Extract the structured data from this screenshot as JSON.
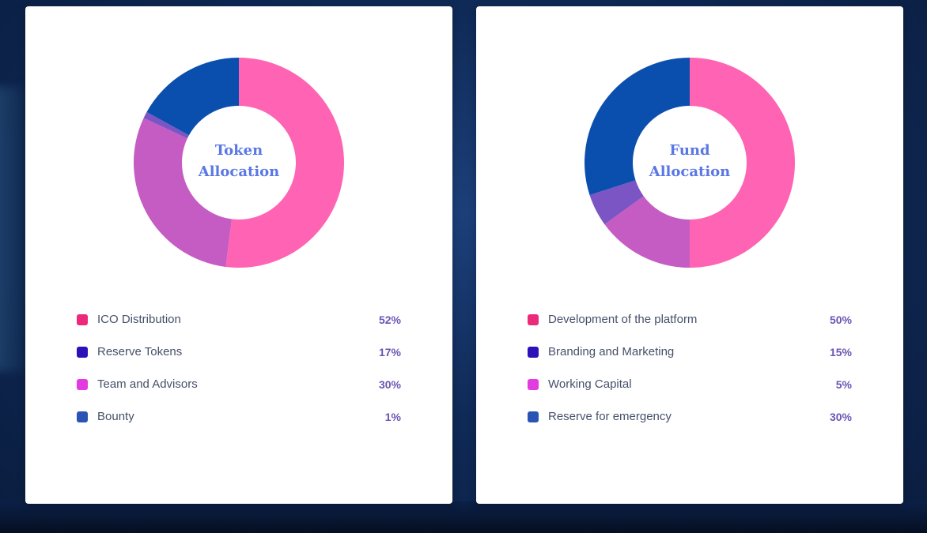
{
  "chart_data": [
    {
      "type": "pie",
      "title_lines": [
        "Token",
        "Allocation"
      ],
      "slices": [
        {
          "label": "ICO Distribution",
          "value": 52,
          "display": "52%",
          "swatch": "#ec2a7a",
          "arc": "#ff63b3"
        },
        {
          "label": "Reserve Tokens",
          "value": 17,
          "display": "17%",
          "swatch": "#2d10b8",
          "arc": "#0b4fae"
        },
        {
          "label": "Team and Advisors",
          "value": 30,
          "display": "30%",
          "swatch": "#e23be0",
          "arc": "#c45cc4"
        },
        {
          "label": "Bounty",
          "value": 1,
          "display": "1%",
          "swatch": "#2a54b4",
          "arc": "#7b55c4"
        }
      ],
      "arc_order": [
        0,
        2,
        3,
        1
      ]
    },
    {
      "type": "pie",
      "title_lines": [
        "Fund",
        "Allocation"
      ],
      "slices": [
        {
          "label": "Development of the platform",
          "value": 50,
          "display": "50%",
          "swatch": "#ec2a7a",
          "arc": "#ff63b3"
        },
        {
          "label": "Branding and Marketing",
          "value": 15,
          "display": "15%",
          "swatch": "#2d10b8",
          "arc": "#c45cc4"
        },
        {
          "label": "Working Capital",
          "value": 5,
          "display": "5%",
          "swatch": "#e23be0",
          "arc": "#7b55c4"
        },
        {
          "label": "Reserve for emergency",
          "value": 30,
          "display": "30%",
          "swatch": "#2a54b4",
          "arc": "#0b4fae"
        }
      ],
      "arc_order": [
        0,
        1,
        2,
        3
      ]
    }
  ]
}
